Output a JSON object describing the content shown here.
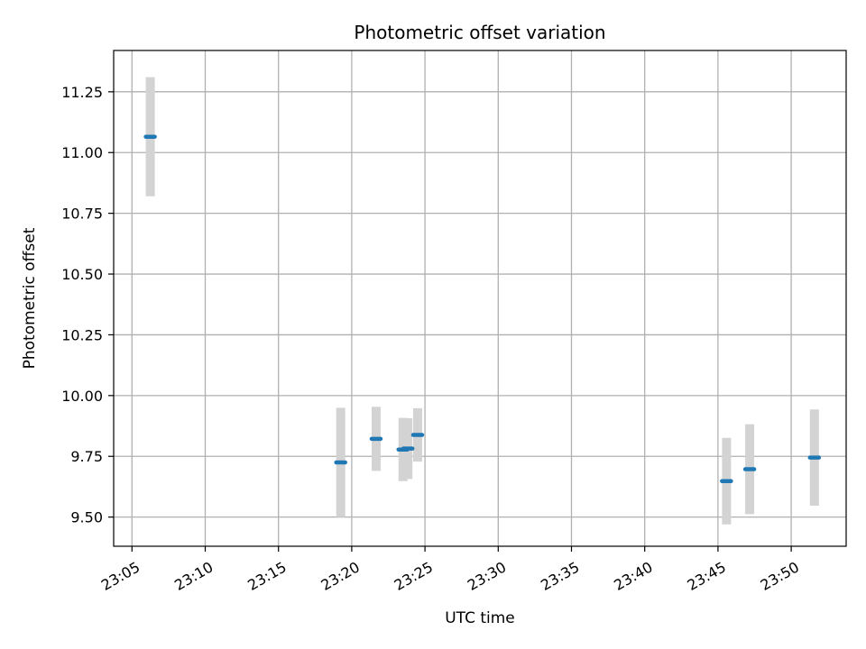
{
  "chart_data": {
    "type": "scatter",
    "title": "Photometric offset variation",
    "xlabel": "UTC time",
    "ylabel": "Photometric offset",
    "xlim": [
      "23:03:45",
      "23:53:45"
    ],
    "ylim": [
      9.38,
      11.42
    ],
    "grid": true,
    "x_ticks": [
      "23:05",
      "23:10",
      "23:15",
      "23:20",
      "23:25",
      "23:30",
      "23:35",
      "23:40",
      "23:45",
      "23:50"
    ],
    "y_ticks": [
      "9.50",
      "9.75",
      "10.00",
      "10.25",
      "10.50",
      "10.75",
      "11.00",
      "11.25"
    ],
    "series": [
      {
        "marker_color": "#1f77b4",
        "error_color": "#d3d3d3",
        "points": [
          {
            "t": "23:06:15",
            "y": 11.065,
            "err": 0.245
          },
          {
            "t": "23:19:15",
            "y": 9.725,
            "err": 0.225
          },
          {
            "t": "23:21:40",
            "y": 9.822,
            "err": 0.132
          },
          {
            "t": "23:23:30",
            "y": 9.778,
            "err": 0.13
          },
          {
            "t": "23:23:50",
            "y": 9.782,
            "err": 0.125
          },
          {
            "t": "23:24:30",
            "y": 9.838,
            "err": 0.11
          },
          {
            "t": "23:45:35",
            "y": 9.648,
            "err": 0.178
          },
          {
            "t": "23:47:10",
            "y": 9.697,
            "err": 0.185
          },
          {
            "t": "23:51:35",
            "y": 9.745,
            "err": 0.198
          }
        ]
      }
    ]
  }
}
